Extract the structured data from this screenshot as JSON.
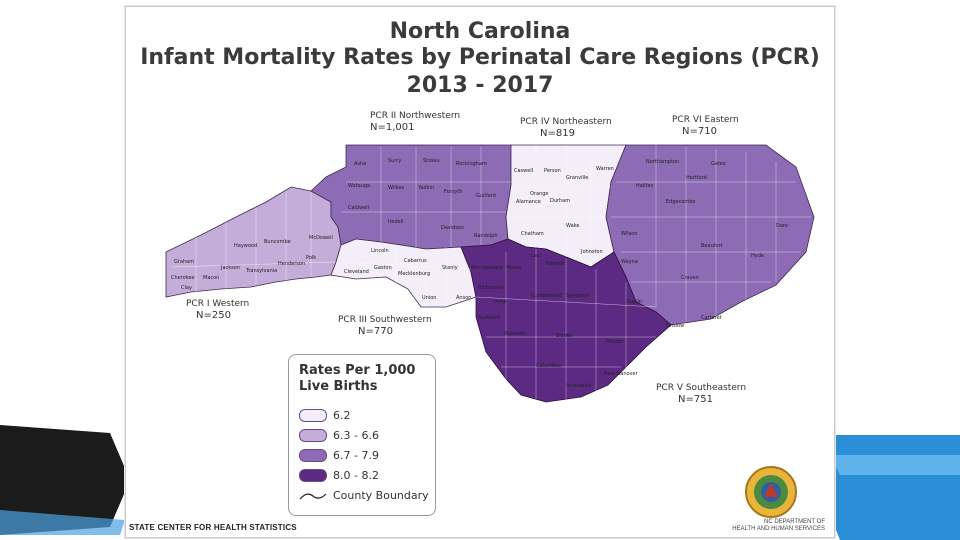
{
  "title": {
    "line1": "North Carolina",
    "line2": "Infant Mortality Rates by Perinatal Care Regions (PCR)",
    "line3": "2013 - 2017"
  },
  "regions": [
    {
      "name": "PCR II Northwestern",
      "n": "N=1,001",
      "rate_class": "6.7 - 7.9"
    },
    {
      "name": "PCR IV Northeastern",
      "n": "N=819",
      "rate_class": "6.2"
    },
    {
      "name": "PCR VI Eastern",
      "n": "N=710",
      "rate_class": "6.7 - 7.9"
    },
    {
      "name": "PCR I Western",
      "n": "N=250",
      "rate_class": "6.3 - 6.6"
    },
    {
      "name": "PCR III Southwestern",
      "n": "N=770",
      "rate_class": "6.2"
    },
    {
      "name": "PCR V Southeastern",
      "n": "N=751",
      "rate_class": "8.0 - 8.2"
    }
  ],
  "legend": {
    "title": "Rates Per 1,000 Live Births",
    "items": [
      {
        "label": "6.2",
        "color": "#f3eef8"
      },
      {
        "label": "6.3 - 6.6",
        "color": "#c4aed9"
      },
      {
        "label": "6.7 - 7.9",
        "color": "#8e6bb5"
      },
      {
        "label": "8.0 - 8.2",
        "color": "#5c2a82"
      }
    ],
    "boundary_label": "County Boundary"
  },
  "counties": {
    "nw": [
      "Ashe",
      "Alle-ghany",
      "Surry",
      "Stokes",
      "Rockingham",
      "Watauga",
      "Wilkes",
      "Yadkin",
      "Forsyth",
      "Guilford",
      "Caldwell",
      "Alexander",
      "Iredell",
      "Davie",
      "Davidson",
      "Randolph",
      "Burke",
      "Catawba"
    ],
    "ne": [
      "Caswell",
      "Person",
      "Granville",
      "Vance",
      "Warren",
      "Durham",
      "Orange",
      "Wake",
      "Chatham",
      "Johnston",
      "Lee",
      "Franklin",
      "Alamance"
    ],
    "e": [
      "Northampton",
      "Gates",
      "Hertford",
      "Halifax",
      "Bertie",
      "Nash",
      "Edgecombe",
      "Martin",
      "Washington",
      "Tyrrell",
      "Dare",
      "Wilson",
      "Pitt",
      "Beaufort",
      "Hyde",
      "Greene",
      "Wayne",
      "Lenoir",
      "Craven",
      "Pamlico",
      "Jones",
      "Duplin",
      "Onslow",
      "Carteret"
    ],
    "w": [
      "Mitchell",
      "Madison",
      "Buncombe",
      "McDowell",
      "Rutherford",
      "Haywood",
      "Graham",
      "Swain",
      "Jackson",
      "Macon",
      "Cherokee",
      "Clay",
      "Transylvania",
      "Henderson",
      "Polk"
    ],
    "sw": [
      "Lincoln",
      "Gaston",
      "Cleveland",
      "Cabarrus",
      "Mecklenburg",
      "Stanly",
      "Union",
      "Anson",
      "Rowan"
    ],
    "se": [
      "Montgomery",
      "Moore",
      "Harnett",
      "Hoke",
      "Richmond",
      "Scotland",
      "Cumberland",
      "Sampson",
      "Robeson",
      "Bladen",
      "Pender",
      "Columbus",
      "New Hanover",
      "Brunswick"
    ]
  },
  "footer": "STATE CENTER FOR HEALTH STATISTICS",
  "department": {
    "line1": "NC DEPARTMENT OF",
    "line2": "HEALTH AND HUMAN SERVICES"
  },
  "colors": {
    "rate_6_2": "#f3eef8",
    "rate_6_3_6_6": "#c4aed9",
    "rate_6_7_7_9": "#8e6bb5",
    "rate_8_0_8_2": "#5c2a82",
    "deco_left": "#1b1b1b",
    "deco_right": "#2a8fd6"
  },
  "icons": [
    "county-boundary-icon",
    "nc-dhhs-seal-icon"
  ]
}
